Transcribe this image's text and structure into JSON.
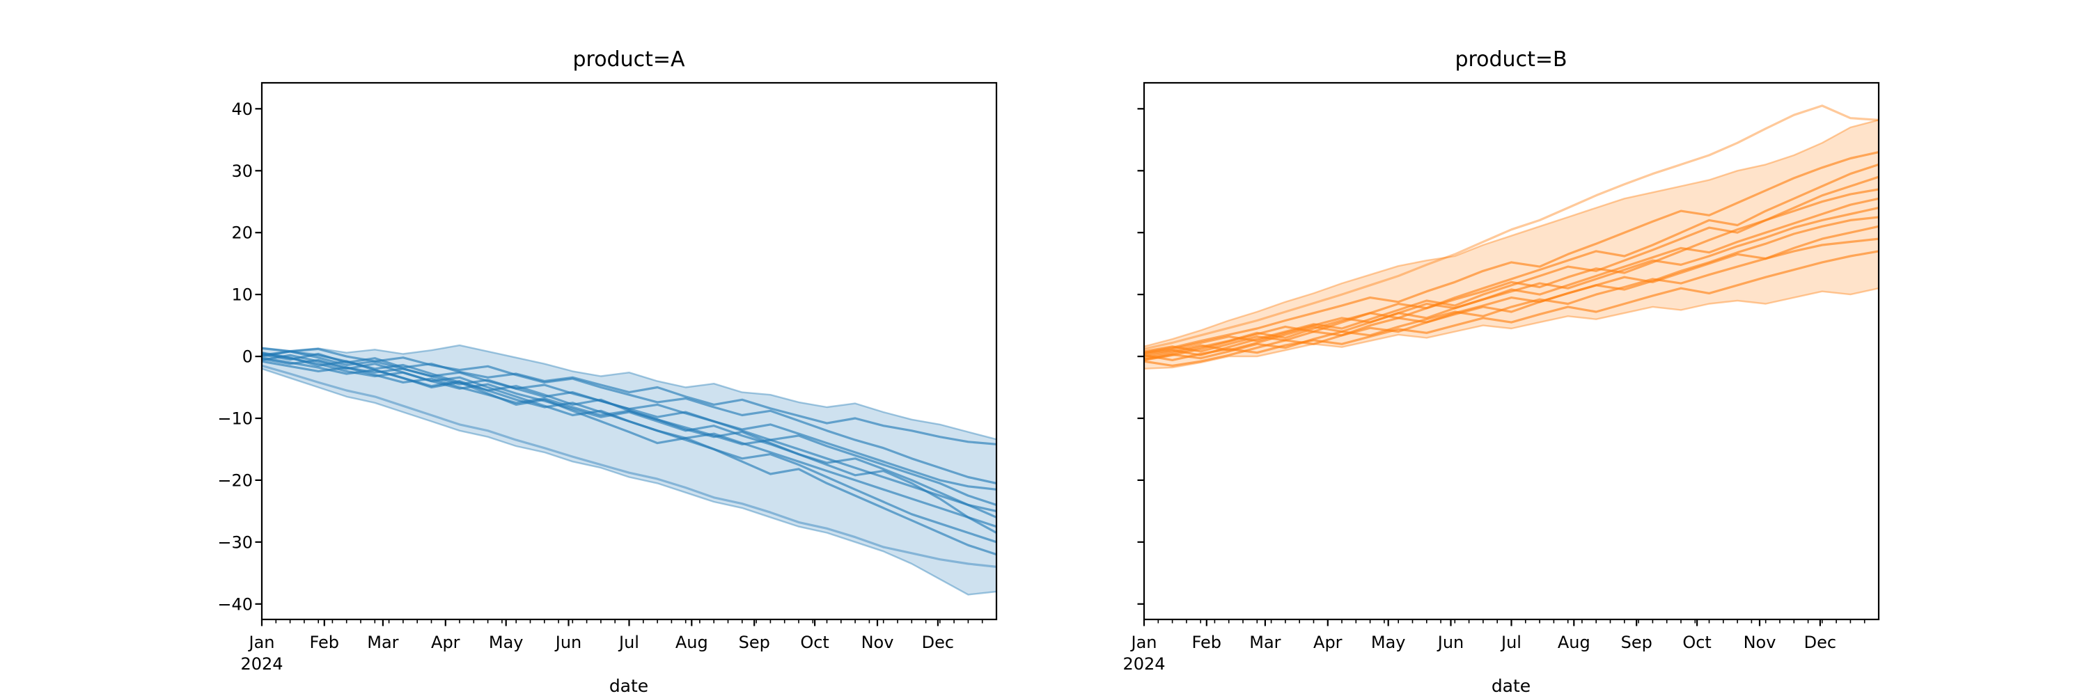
{
  "chart_data": [
    {
      "type": "line",
      "title": "product=A",
      "xlabel": "date",
      "ylabel": "",
      "year_label": "2024",
      "x_unit": "day_of_year_2024",
      "xlim_days": [
        0,
        364
      ],
      "x_tick_labels": [
        "Jan",
        "Feb",
        "Mar",
        "Apr",
        "May",
        "Jun",
        "Jul",
        "Aug",
        "Sep",
        "Oct",
        "Nov",
        "Dec"
      ],
      "x_tick_days": [
        0,
        31,
        60,
        91,
        121,
        152,
        182,
        213,
        244,
        274,
        305,
        335
      ],
      "x_minor_tick_step_days": 7,
      "ylim": [
        -42.5,
        44.2
      ],
      "y_ticks": [
        40,
        30,
        20,
        10,
        0,
        -10,
        -20,
        -30,
        -40
      ],
      "y_tick_labels": [
        "40",
        "30",
        "20",
        "10",
        "0",
        "−10",
        "−20",
        "−30",
        "−40"
      ],
      "show_y_tick_labels": true,
      "grid": "off",
      "legend": "none",
      "color": "#1f77b4",
      "x_days": [
        0,
        14,
        28,
        42,
        56,
        70,
        84,
        98,
        112,
        126,
        140,
        154,
        168,
        182,
        196,
        210,
        224,
        238,
        252,
        266,
        280,
        294,
        308,
        322,
        336,
        350,
        364
      ],
      "band": {
        "upper": [
          1.4,
          0.9,
          1.3,
          0.6,
          1.1,
          0.4,
          1.0,
          1.8,
          0.8,
          -0.2,
          -1.2,
          -2.4,
          -3.2,
          -2.6,
          -4.0,
          -5.0,
          -4.4,
          -5.8,
          -6.2,
          -7.4,
          -8.2,
          -7.6,
          -9.0,
          -10.2,
          -11.0,
          -12.2,
          -13.4
        ],
        "lower": [
          -2.0,
          -3.5,
          -5.0,
          -6.5,
          -7.5,
          -9.0,
          -10.5,
          -12.0,
          -13.0,
          -14.5,
          -15.5,
          -17.0,
          -18.0,
          -19.5,
          -20.5,
          -22.0,
          -23.5,
          -24.5,
          -26.0,
          -27.5,
          -28.5,
          -30.0,
          -31.5,
          -33.5,
          -36.0,
          -38.5,
          -38.0
        ]
      },
      "series": [
        [
          0.3,
          -0.5,
          0.4,
          -1.0,
          -0.3,
          -1.8,
          -1.2,
          -2.5,
          -3.4,
          -2.8,
          -4.0,
          -3.4,
          -4.6,
          -5.8,
          -5.0,
          -6.5,
          -7.8,
          -7.0,
          -8.4,
          -9.6,
          -10.8,
          -10.0,
          -11.2,
          -12.0,
          -13.0,
          -13.8,
          -14.2
        ],
        [
          1.3,
          0.8,
          1.2,
          0.0,
          -0.8,
          -0.2,
          -1.4,
          -2.2,
          -1.6,
          -3.0,
          -4.2,
          -3.6,
          -5.0,
          -6.2,
          -7.4,
          -6.8,
          -8.2,
          -9.5,
          -8.8,
          -10.4,
          -12.0,
          -13.5,
          -14.8,
          -16.5,
          -18.0,
          -19.5,
          -20.5
        ],
        [
          -0.4,
          -1.2,
          -0.6,
          -1.8,
          -2.6,
          -2.0,
          -3.2,
          -2.6,
          -4.0,
          -5.2,
          -4.6,
          -6.0,
          -7.2,
          -8.5,
          -7.8,
          -9.2,
          -10.5,
          -11.8,
          -11.0,
          -12.5,
          -14.0,
          -15.5,
          -17.0,
          -18.5,
          -20.0,
          -21.0,
          -21.5
        ],
        [
          0.0,
          0.8,
          -0.2,
          -1.4,
          -0.8,
          -2.0,
          -3.2,
          -4.5,
          -3.8,
          -5.2,
          -6.5,
          -5.8,
          -7.2,
          -8.5,
          -9.8,
          -9.0,
          -10.5,
          -12.0,
          -13.5,
          -12.8,
          -14.5,
          -16.0,
          -17.5,
          -19.0,
          -20.5,
          -22.5,
          -24.0
        ],
        [
          -0.8,
          -1.6,
          -2.4,
          -1.8,
          -3.0,
          -4.2,
          -3.6,
          -5.0,
          -6.2,
          -7.5,
          -6.8,
          -8.2,
          -9.5,
          -8.8,
          -10.2,
          -11.5,
          -12.8,
          -14.2,
          -13.5,
          -15.0,
          -16.5,
          -18.0,
          -19.5,
          -21.0,
          -22.5,
          -24.0,
          -25.0
        ],
        [
          0.5,
          -0.3,
          -1.2,
          -2.4,
          -3.2,
          -2.6,
          -4.0,
          -5.2,
          -4.5,
          -6.0,
          -7.2,
          -8.5,
          -9.8,
          -9.0,
          -10.5,
          -12.0,
          -11.2,
          -12.8,
          -14.2,
          -15.8,
          -17.2,
          -16.5,
          -18.2,
          -20.0,
          -22.0,
          -24.0,
          -26.0
        ],
        [
          -0.2,
          -1.0,
          -1.8,
          -2.8,
          -2.2,
          -3.5,
          -4.8,
          -4.0,
          -5.5,
          -7.0,
          -8.2,
          -7.5,
          -9.0,
          -10.5,
          -12.0,
          -13.2,
          -12.5,
          -14.0,
          -15.5,
          -17.0,
          -18.5,
          -20.0,
          -21.5,
          -23.0,
          -24.5,
          -26.0,
          -27.5
        ],
        [
          0.2,
          0.8,
          0.2,
          -0.8,
          -2.0,
          -1.4,
          -2.8,
          -4.2,
          -5.5,
          -4.8,
          -6.2,
          -7.8,
          -7.0,
          -8.8,
          -10.2,
          -11.8,
          -13.0,
          -12.2,
          -14.0,
          -15.8,
          -17.5,
          -19.2,
          -18.5,
          -20.5,
          -23.0,
          -26.0,
          -28.5
        ],
        [
          -0.6,
          0.2,
          -0.8,
          -2.0,
          -1.2,
          -2.6,
          -4.0,
          -3.4,
          -5.0,
          -6.5,
          -8.0,
          -9.5,
          -8.8,
          -10.5,
          -12.0,
          -13.5,
          -15.0,
          -16.5,
          -15.8,
          -17.5,
          -19.5,
          -21.5,
          -23.5,
          -25.5,
          -27.0,
          -28.5,
          -30.0
        ],
        [
          0.6,
          -0.2,
          -1.5,
          -0.8,
          -2.2,
          -3.5,
          -5.0,
          -4.2,
          -6.0,
          -7.8,
          -7.0,
          -8.8,
          -10.5,
          -12.2,
          -14.0,
          -13.2,
          -15.0,
          -17.0,
          -19.0,
          -18.2,
          -20.5,
          -22.5,
          -24.5,
          -26.5,
          -28.5,
          -30.5,
          -32.0
        ]
      ],
      "light_series": [
        [
          -1.5,
          -2.8,
          -4.2,
          -5.5,
          -6.5,
          -8.0,
          -9.5,
          -11.0,
          -12.0,
          -13.5,
          -14.8,
          -16.2,
          -17.5,
          -18.8,
          -19.8,
          -21.2,
          -22.8,
          -23.8,
          -25.2,
          -26.8,
          -27.8,
          -29.2,
          -30.8,
          -31.8,
          -32.8,
          -33.5,
          -34.0
        ]
      ]
    },
    {
      "type": "line",
      "title": "product=B",
      "xlabel": "date",
      "ylabel": "",
      "year_label": "2024",
      "x_unit": "day_of_year_2024",
      "xlim_days": [
        0,
        364
      ],
      "x_tick_labels": [
        "Jan",
        "Feb",
        "Mar",
        "Apr",
        "May",
        "Jun",
        "Jul",
        "Aug",
        "Sep",
        "Oct",
        "Nov",
        "Dec"
      ],
      "x_tick_days": [
        0,
        31,
        60,
        91,
        121,
        152,
        182,
        213,
        244,
        274,
        305,
        335
      ],
      "x_minor_tick_step_days": 7,
      "ylim": [
        -42.5,
        44.2
      ],
      "y_ticks": [
        40,
        30,
        20,
        10,
        0,
        -10,
        -20,
        -30,
        -40
      ],
      "y_tick_labels": [
        "40",
        "30",
        "20",
        "10",
        "0",
        "−10",
        "−20",
        "−30",
        "−40"
      ],
      "show_y_tick_labels": false,
      "grid": "off",
      "legend": "none",
      "color": "#ff7f0e",
      "x_days": [
        0,
        14,
        28,
        42,
        56,
        70,
        84,
        98,
        112,
        126,
        140,
        154,
        168,
        182,
        196,
        210,
        224,
        238,
        252,
        266,
        280,
        294,
        308,
        322,
        336,
        350,
        364
      ],
      "band": {
        "upper": [
          1.6,
          2.8,
          4.2,
          5.8,
          7.2,
          8.8,
          10.2,
          11.8,
          13.2,
          14.6,
          15.5,
          16.2,
          18.0,
          19.5,
          21.0,
          22.5,
          24.0,
          25.5,
          26.5,
          27.5,
          28.5,
          30.0,
          31.0,
          32.5,
          34.5,
          37.0,
          38.2
        ],
        "lower": [
          -2.0,
          -1.8,
          -1.0,
          0.0,
          0.0,
          1.0,
          2.0,
          1.5,
          2.5,
          3.5,
          3.0,
          4.0,
          5.0,
          4.5,
          5.5,
          6.5,
          6.0,
          7.0,
          8.0,
          7.5,
          8.5,
          9.0,
          8.5,
          9.5,
          10.5,
          10.0,
          11.0
        ]
      },
      "series": [
        [
          0.2,
          -0.6,
          0.4,
          1.2,
          0.6,
          1.8,
          2.6,
          2.0,
          3.2,
          4.4,
          3.8,
          5.0,
          6.2,
          5.5,
          6.8,
          8.0,
          7.2,
          8.5,
          9.8,
          11.0,
          10.2,
          11.5,
          12.8,
          14.0,
          15.2,
          16.2,
          17.0
        ],
        [
          -0.5,
          0.3,
          -0.3,
          0.8,
          2.0,
          1.4,
          2.8,
          4.0,
          3.4,
          4.8,
          6.0,
          7.2,
          6.5,
          8.0,
          9.2,
          8.5,
          10.0,
          11.2,
          12.5,
          11.8,
          13.2,
          14.5,
          15.8,
          17.0,
          18.0,
          18.5,
          19.0
        ],
        [
          0.8,
          1.6,
          0.8,
          2.0,
          3.2,
          2.6,
          4.0,
          3.4,
          5.0,
          6.2,
          5.5,
          7.0,
          8.2,
          9.5,
          8.8,
          10.2,
          11.5,
          12.8,
          12.0,
          13.5,
          15.0,
          16.5,
          15.8,
          17.5,
          19.0,
          20.0,
          21.0
        ],
        [
          -0.8,
          -1.5,
          -0.8,
          0.2,
          1.4,
          2.6,
          2.0,
          3.4,
          4.6,
          4.0,
          5.5,
          6.8,
          8.0,
          7.2,
          8.8,
          10.2,
          11.5,
          10.8,
          12.2,
          13.8,
          15.2,
          16.8,
          18.2,
          19.8,
          21.0,
          22.0,
          22.5
        ],
        [
          0.0,
          0.8,
          1.8,
          1.0,
          2.2,
          3.5,
          4.8,
          4.0,
          5.5,
          7.0,
          6.2,
          7.8,
          9.2,
          10.5,
          11.8,
          11.0,
          12.5,
          14.0,
          15.5,
          14.8,
          16.2,
          17.8,
          19.2,
          20.8,
          22.0,
          23.0,
          24.0
        ],
        [
          0.5,
          1.2,
          2.2,
          3.2,
          2.5,
          3.8,
          5.0,
          6.2,
          5.5,
          7.0,
          8.5,
          7.8,
          9.2,
          10.8,
          10.0,
          11.5,
          13.0,
          14.5,
          16.0,
          17.5,
          16.8,
          18.5,
          20.0,
          21.5,
          23.0,
          24.5,
          25.5
        ],
        [
          -0.3,
          0.5,
          1.5,
          2.5,
          3.8,
          3.0,
          4.5,
          5.8,
          7.0,
          6.2,
          7.8,
          9.2,
          10.5,
          12.0,
          11.2,
          12.8,
          14.2,
          13.5,
          15.2,
          17.0,
          18.8,
          20.5,
          22.0,
          23.5,
          25.0,
          26.2,
          27.0
        ],
        [
          0.3,
          1.0,
          0.2,
          1.5,
          2.8,
          4.0,
          5.2,
          4.5,
          6.0,
          7.5,
          9.0,
          8.2,
          10.0,
          11.5,
          13.0,
          14.5,
          13.8,
          15.5,
          17.2,
          19.0,
          20.8,
          20.0,
          22.0,
          24.0,
          26.0,
          27.5,
          29.0
        ],
        [
          -0.6,
          0.2,
          1.2,
          2.4,
          3.6,
          4.8,
          4.0,
          5.5,
          7.0,
          8.5,
          7.8,
          9.5,
          11.0,
          12.5,
          14.0,
          15.5,
          17.0,
          16.2,
          18.0,
          20.0,
          22.0,
          21.2,
          23.5,
          25.5,
          27.5,
          29.5,
          31.0
        ],
        [
          0.6,
          1.4,
          2.5,
          3.5,
          4.5,
          5.8,
          7.0,
          8.2,
          9.5,
          8.8,
          10.5,
          12.0,
          13.8,
          15.2,
          14.5,
          16.5,
          18.2,
          20.0,
          21.8,
          23.5,
          22.8,
          24.8,
          26.8,
          28.8,
          30.5,
          32.0,
          33.0
        ]
      ],
      "light_series": [
        [
          1.2,
          2.2,
          3.4,
          4.6,
          5.8,
          7.2,
          8.6,
          10.0,
          11.5,
          13.0,
          14.8,
          16.5,
          18.5,
          20.5,
          22.0,
          24.0,
          26.0,
          27.8,
          29.5,
          31.0,
          32.5,
          34.5,
          36.8,
          39.0,
          40.5,
          38.5,
          38.2
        ]
      ]
    }
  ]
}
